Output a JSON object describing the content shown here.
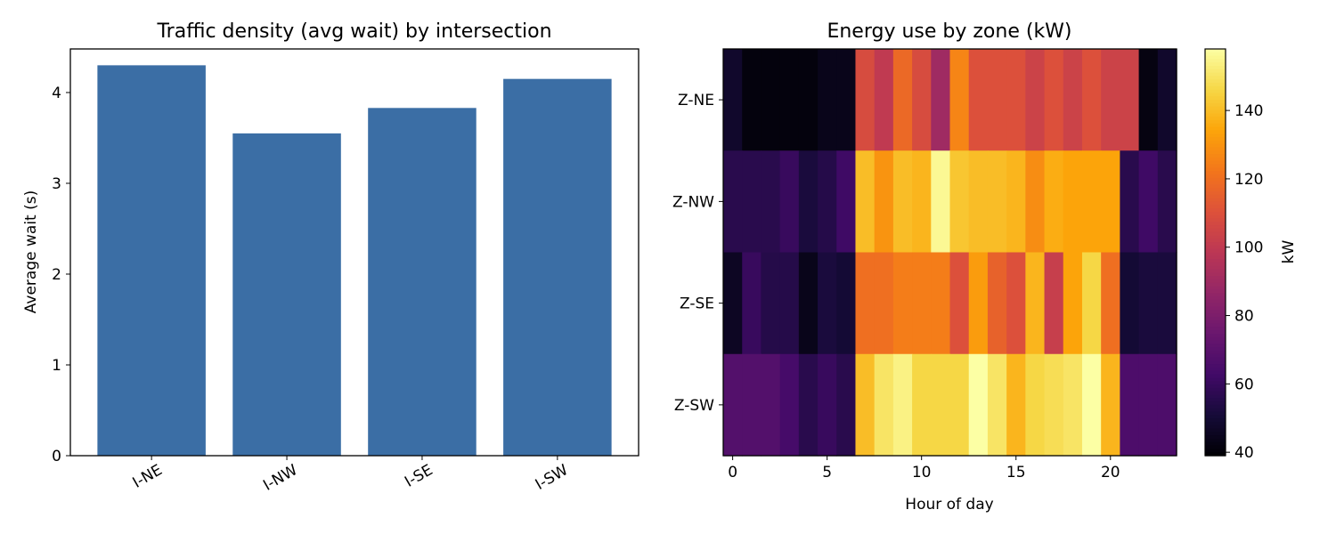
{
  "chart_data": [
    {
      "type": "bar",
      "title": "Traffic density (avg wait) by intersection",
      "xlabel": "",
      "ylabel": "Average wait (s)",
      "categories": [
        "I-NE",
        "I-NW",
        "I-SE",
        "I-SW"
      ],
      "values": [
        4.3,
        3.55,
        3.83,
        4.15
      ],
      "ylim": [
        0,
        4.48
      ],
      "yticks": [
        0,
        1,
        2,
        3,
        4
      ],
      "bar_color": "#3b6ea5",
      "grid": false
    },
    {
      "type": "heatmap",
      "title": "Energy use by zone (kW)",
      "xlabel": "Hour of day",
      "ylabel": "",
      "x": [
        0,
        1,
        2,
        3,
        4,
        5,
        6,
        7,
        8,
        9,
        10,
        11,
        12,
        13,
        14,
        15,
        16,
        17,
        18,
        19,
        20,
        21,
        22,
        23
      ],
      "xticks": [
        0,
        5,
        10,
        15,
        20
      ],
      "rows": [
        "Z-NE",
        "Z-NW",
        "Z-SE",
        "Z-SW"
      ],
      "values": [
        [
          48,
          41,
          41,
          41,
          41,
          44,
          44,
          108,
          100,
          118,
          108,
          90,
          126,
          110,
          110,
          110,
          104,
          110,
          104,
          110,
          104,
          104,
          42,
          48
        ],
        [
          56,
          56,
          56,
          60,
          52,
          55,
          62,
          140,
          130,
          140,
          138,
          156,
          142,
          140,
          140,
          138,
          128,
          136,
          134,
          134,
          134,
          56,
          62,
          56
        ],
        [
          46,
          60,
          55,
          55,
          44,
          52,
          50,
          120,
          120,
          124,
          124,
          124,
          110,
          132,
          116,
          110,
          138,
          102,
          134,
          146,
          120,
          50,
          52,
          52
        ],
        [
          68,
          68,
          68,
          64,
          56,
          60,
          56,
          140,
          150,
          154,
          146,
          146,
          146,
          160,
          150,
          138,
          146,
          148,
          150,
          158,
          138,
          66,
          66,
          66
        ]
      ],
      "colormap": "inferno",
      "vmin": 39,
      "vmax": 158,
      "colorbar": {
        "label": "kW",
        "ticks": [
          40,
          60,
          80,
          100,
          120,
          140
        ]
      }
    }
  ]
}
